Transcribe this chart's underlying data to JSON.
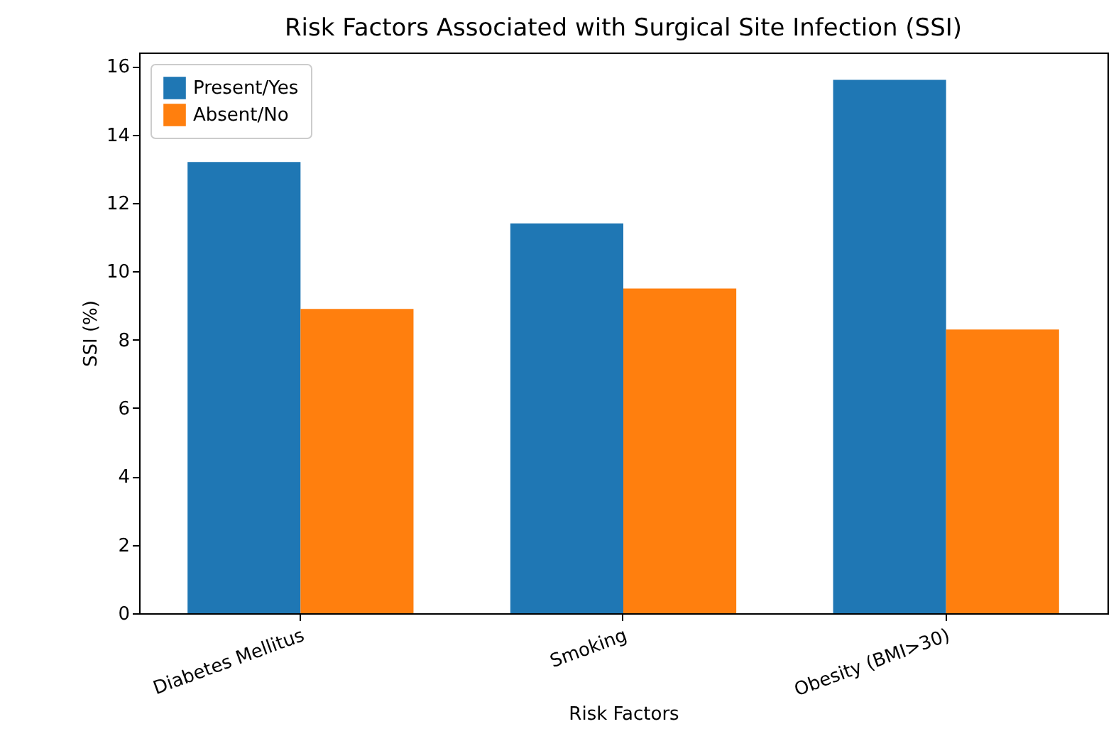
{
  "chart_data": {
    "type": "bar",
    "title": "Risk Factors Associated with Surgical Site Infection (SSI)",
    "xlabel": "Risk Factors",
    "ylabel": "SSI (%)",
    "categories": [
      "Diabetes Mellitus",
      "Smoking",
      "Obesity (BMI>30)"
    ],
    "series": [
      {
        "name": "Present/Yes",
        "color": "#1f77b4",
        "values": [
          13.2,
          11.4,
          15.6
        ]
      },
      {
        "name": "Absent/No",
        "color": "#ff7f0e",
        "values": [
          8.9,
          9.5,
          8.3
        ]
      }
    ],
    "ylim": [
      0,
      16.4
    ],
    "yticks": [
      0,
      2,
      4,
      6,
      8,
      10,
      12,
      14,
      16
    ],
    "grid": false,
    "legend": "top left"
  }
}
